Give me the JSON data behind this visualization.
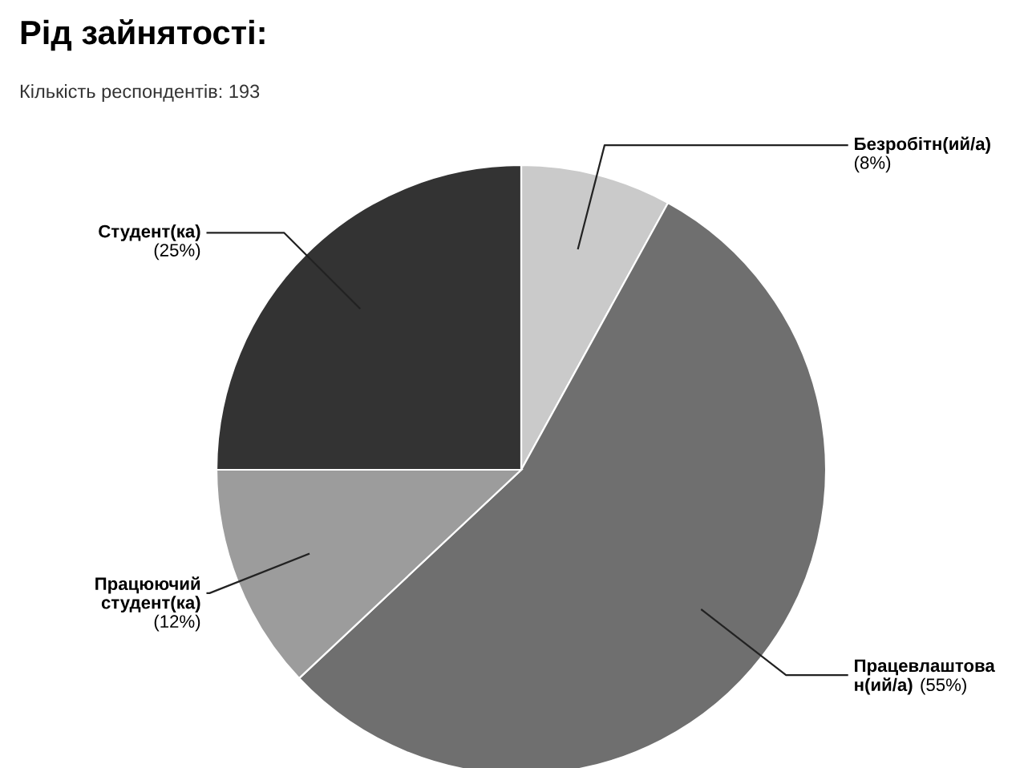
{
  "chart_data": {
    "type": "pie",
    "title": "Рід зайнятості:",
    "subtitle": "Кількість респондентів: 193",
    "categories": [
      "Безробітн(ий/а)",
      "Працевлаштова\nн(ий/а)",
      "Працюючий\nстудент(ка)",
      "Студент(ка)"
    ],
    "values": [
      8,
      55,
      12,
      25
    ],
    "value_labels": [
      "(8%)",
      "(55%)",
      "(12%)",
      "(25%)"
    ],
    "colors": [
      "#cacaca",
      "#6f6f6f",
      "#9c9c9c",
      "#333333"
    ]
  }
}
